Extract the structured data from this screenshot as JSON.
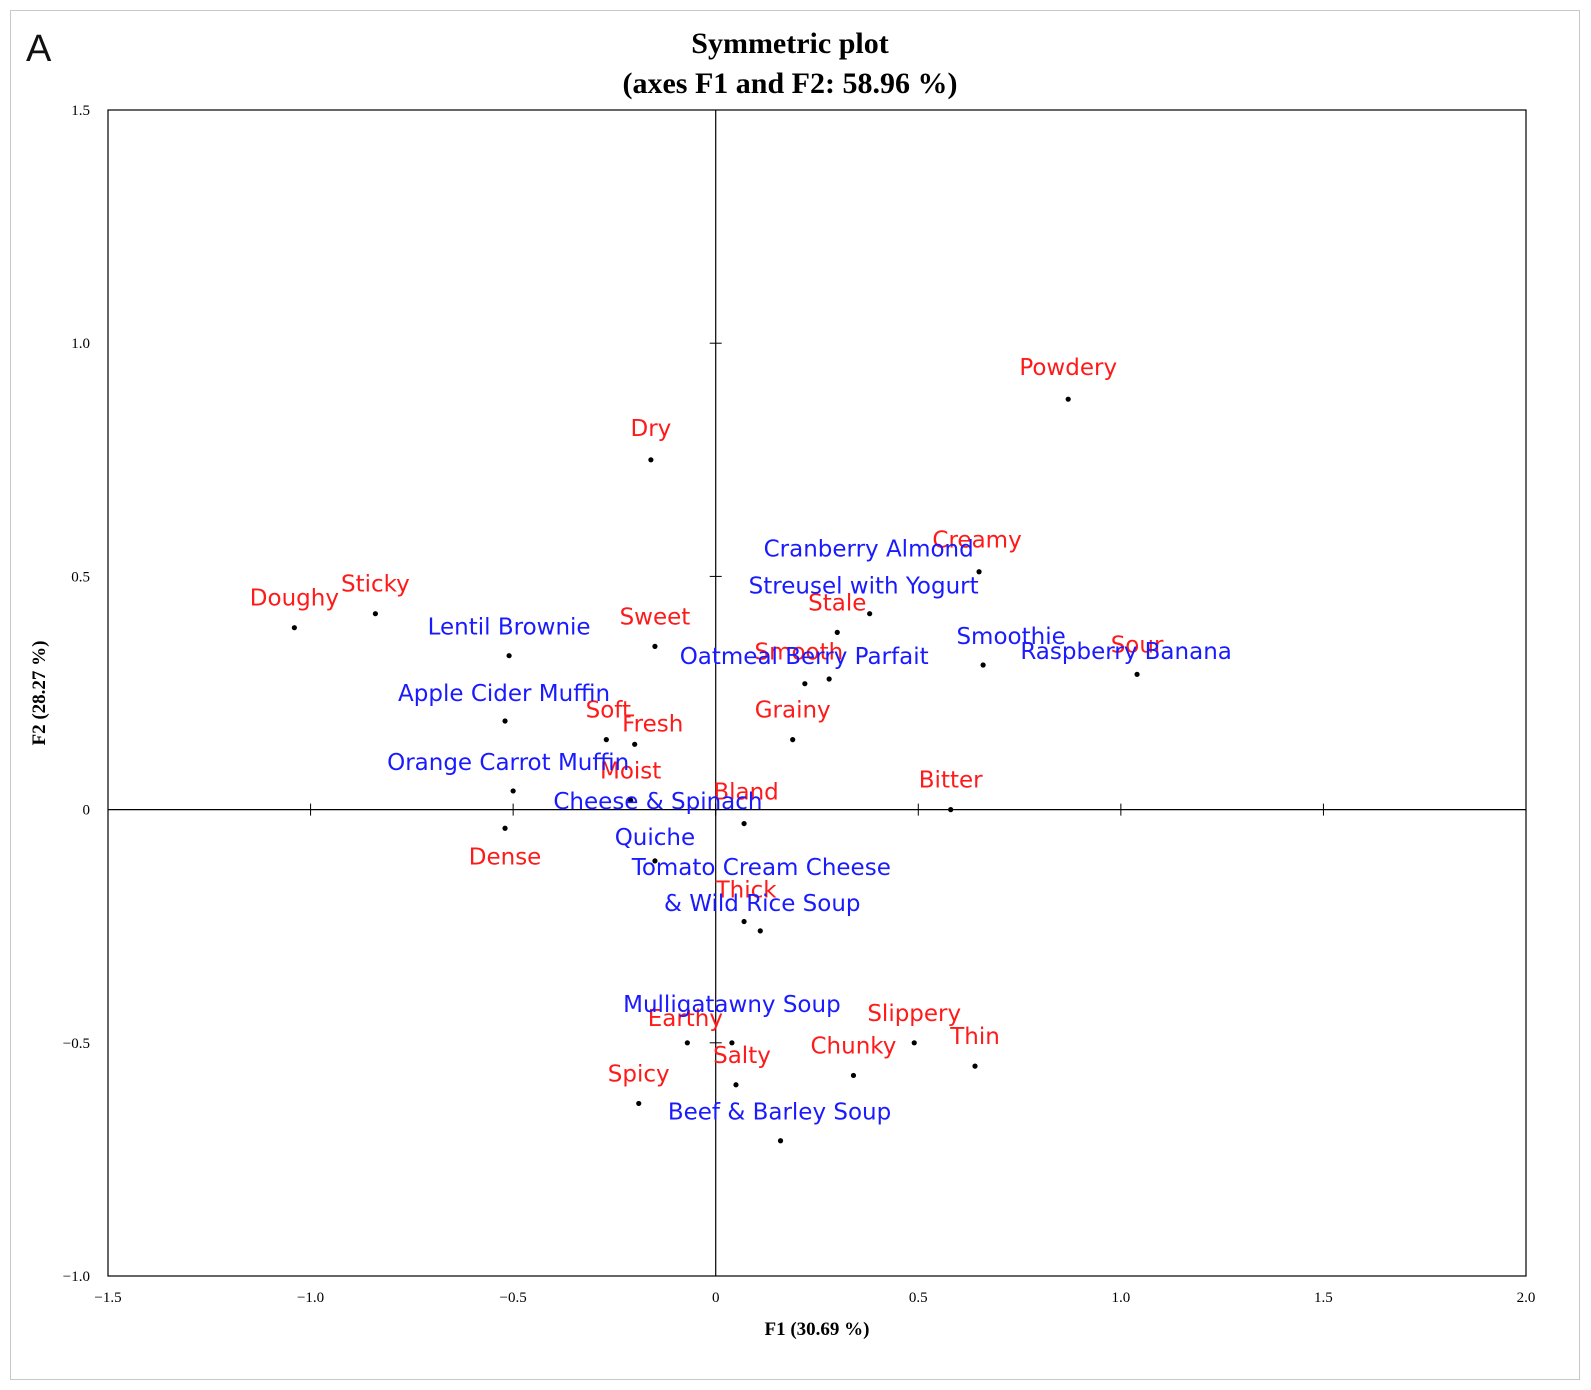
{
  "panel_label": "A",
  "chart_data": {
    "type": "scatter",
    "title": "Symmetric plot",
    "subtitle": "(axes F1 and F2: 58.96 %)",
    "xlabel": "F1 (30.69 %)",
    "ylabel": "F2 (28.27 %)",
    "xlim": [
      -1.5,
      2.0
    ],
    "ylim": [
      -1.0,
      1.5
    ],
    "grid": false,
    "x_ticks": [
      {
        "value": -1.5,
        "label": "−1.5"
      },
      {
        "value": -1.0,
        "label": "−1.0"
      },
      {
        "value": -0.5,
        "label": "−0.5"
      },
      {
        "value": 0,
        "label": "0"
      },
      {
        "value": 0.5,
        "label": "0.5"
      },
      {
        "value": 1.0,
        "label": "1.0"
      },
      {
        "value": 1.5,
        "label": "1.5"
      },
      {
        "value": 2.0,
        "label": "2.0"
      }
    ],
    "y_ticks": [
      {
        "value": -1.0,
        "label": "−1.0"
      },
      {
        "value": -0.5,
        "label": "−0.5"
      },
      {
        "value": 0,
        "label": "0"
      },
      {
        "value": 0.5,
        "label": "0.5"
      },
      {
        "value": 1.0,
        "label": "1.0"
      },
      {
        "value": 1.5,
        "label": "1.5"
      }
    ],
    "colors": {
      "attributes": "#ff1a1a",
      "products": "#1a1aff"
    },
    "series": [
      {
        "name": "attributes",
        "color": "#ff1a1a",
        "points": [
          {
            "label": "Powdery",
            "x": 0.87,
            "y": 0.88
          },
          {
            "label": "Dry",
            "x": -0.16,
            "y": 0.75
          },
          {
            "label": "Creamy",
            "x": 0.65,
            "y": 0.51
          },
          {
            "label": "Sticky",
            "x": -0.84,
            "y": 0.42
          },
          {
            "label": "Doughy",
            "x": -1.04,
            "y": 0.39
          },
          {
            "label": "Stale",
            "x": 0.3,
            "y": 0.38
          },
          {
            "label": "Sweet",
            "x": -0.15,
            "y": 0.35
          },
          {
            "label": "Smooth",
            "x": 0.22,
            "y": 0.27
          },
          {
            "label": "Sour",
            "x": 1.04,
            "y": 0.29
          },
          {
            "label": "Grainy",
            "x": 0.19,
            "y": 0.15
          },
          {
            "label": "Soft",
            "x": -0.27,
            "y": 0.15
          },
          {
            "label": "Fresh",
            "x": -0.2,
            "y": 0.14
          },
          {
            "label": "Moist",
            "x": -0.21,
            "y": 0.02
          },
          {
            "label": "Bitter",
            "x": 0.58,
            "y": 0.0
          },
          {
            "label": "Dense",
            "x": -0.52,
            "y": -0.04
          },
          {
            "label": "Bland",
            "x": 0.07,
            "y": -0.03
          },
          {
            "label": "Thick",
            "x": 0.07,
            "y": -0.24
          },
          {
            "label": "Slippery",
            "x": 0.49,
            "y": -0.5
          },
          {
            "label": "Thin",
            "x": 0.64,
            "y": -0.55
          },
          {
            "label": "Earthy",
            "x": -0.07,
            "y": -0.5
          },
          {
            "label": "Chunky",
            "x": 0.34,
            "y": -0.57
          },
          {
            "label": "Salty",
            "x": 0.05,
            "y": -0.59
          },
          {
            "label": "Spicy",
            "x": -0.19,
            "y": -0.63
          }
        ]
      },
      {
        "name": "products",
        "color": "#1a1aff",
        "points": [
          {
            "label": "Cranberry  Almond",
            "label2": "Streusel  with Yogurt",
            "x": 0.38,
            "y": 0.42
          },
          {
            "label": "Raspberry  Banana",
            "label2": "Smoothie",
            "x": 0.66,
            "y": 0.31
          },
          {
            "label": "Lentil Brownie",
            "x": -0.51,
            "y": 0.33
          },
          {
            "label": "Oatmeal Berry Parfait",
            "x": 0.28,
            "y": 0.28
          },
          {
            "label": "Apple Cider Muffin",
            "x": -0.52,
            "y": 0.19
          },
          {
            "label": "Orange Carrot Muffin",
            "x": -0.5,
            "y": 0.04
          },
          {
            "label": "Cheese & Spinach",
            "label2": "Quiche",
            "x": -0.15,
            "y": -0.11
          },
          {
            "label": "Tomato Cream Cheese",
            "label2": "& Wild Rice Soup",
            "x": 0.11,
            "y": -0.26
          },
          {
            "label": "Mulligatawny Soup",
            "x": 0.04,
            "y": -0.5
          },
          {
            "label": "Beef & Barley Soup",
            "x": 0.16,
            "y": -0.71
          }
        ]
      }
    ]
  }
}
